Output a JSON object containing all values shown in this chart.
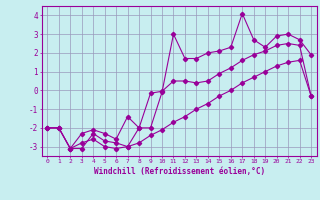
{
  "xlabel": "Windchill (Refroidissement éolien,°C)",
  "x": [
    0,
    1,
    2,
    3,
    4,
    5,
    6,
    7,
    8,
    9,
    10,
    11,
    12,
    13,
    14,
    15,
    16,
    17,
    18,
    19,
    20,
    21,
    22,
    23
  ],
  "y_line1": [
    -2.0,
    -2.0,
    -3.1,
    -3.1,
    -2.3,
    -2.7,
    -2.8,
    -3.0,
    -2.0,
    -2.0,
    -0.1,
    3.0,
    1.7,
    1.7,
    2.0,
    2.1,
    2.3,
    4.1,
    2.7,
    2.3,
    2.9,
    3.0,
    2.7,
    1.9
  ],
  "y_line2": [
    -2.0,
    -2.0,
    -3.1,
    -2.3,
    -2.1,
    -2.3,
    -2.6,
    -1.4,
    -2.0,
    -0.15,
    -0.05,
    0.5,
    0.5,
    0.4,
    0.5,
    0.9,
    1.2,
    1.6,
    1.9,
    2.1,
    2.4,
    2.5,
    2.4,
    -0.3
  ],
  "y_line3": [
    -2.0,
    -2.0,
    -3.1,
    -2.8,
    -2.6,
    -3.0,
    -3.1,
    -3.0,
    -2.8,
    -2.4,
    -2.1,
    -1.7,
    -1.4,
    -1.0,
    -0.7,
    -0.3,
    0.0,
    0.4,
    0.7,
    1.0,
    1.3,
    1.5,
    1.6,
    -0.3
  ],
  "line_color": "#990099",
  "bg_color": "#c8eef0",
  "grid_color": "#9999bb",
  "ylim": [
    -3.5,
    4.5
  ],
  "xlim": [
    -0.5,
    23.5
  ],
  "yticks": [
    -3,
    -2,
    -1,
    0,
    1,
    2,
    3,
    4
  ],
  "xticks": [
    0,
    1,
    2,
    3,
    4,
    5,
    6,
    7,
    8,
    9,
    10,
    11,
    12,
    13,
    14,
    15,
    16,
    17,
    18,
    19,
    20,
    21,
    22,
    23
  ]
}
